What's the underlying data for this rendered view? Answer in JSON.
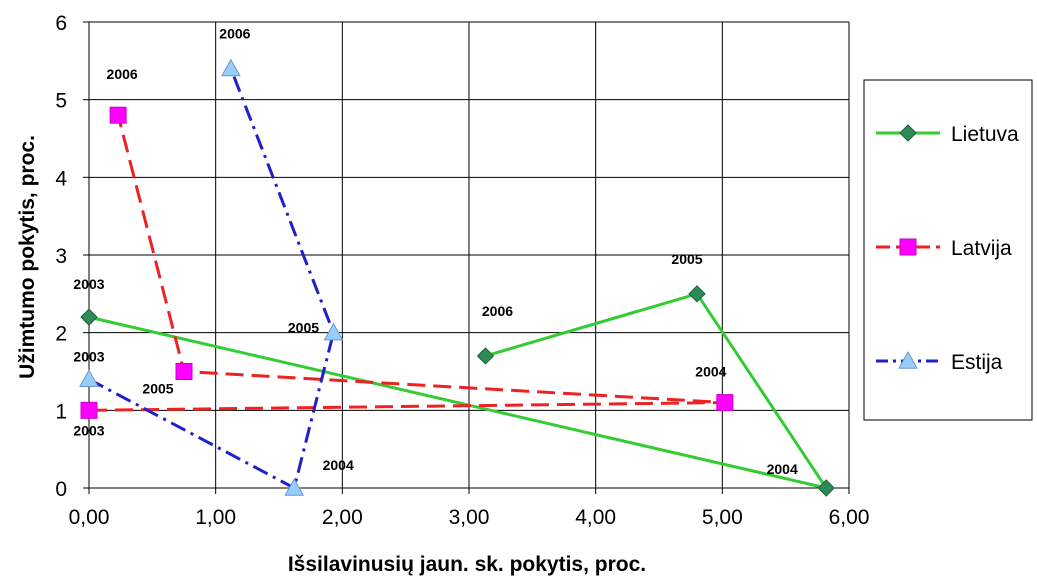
{
  "chart_data": {
    "type": "scatter",
    "title": "",
    "xlabel": "Išsilavinusių jaun. sk. pokytis, proc.",
    "ylabel": "Užimtumo pokytis, proc.",
    "xlim": [
      0,
      6
    ],
    "ylim": [
      0,
      6
    ],
    "x_ticks": [
      "0,00",
      "1,00",
      "2,00",
      "3,00",
      "4,00",
      "5,00",
      "6,00"
    ],
    "y_ticks": [
      "0",
      "1",
      "2",
      "3",
      "4",
      "5",
      "6"
    ],
    "grid": true,
    "legend_position": "right",
    "series": [
      {
        "name": "Lietuva",
        "color": "#33CC33",
        "marker_color": "#2E8B57",
        "marker": "diamond",
        "line_style": "solid",
        "points": [
          {
            "year": "2003",
            "x": 0.0,
            "y": 2.2
          },
          {
            "year": "2004",
            "x": 5.82,
            "y": 0.0
          },
          {
            "year": "2005",
            "x": 4.8,
            "y": 2.5
          },
          {
            "year": "2006",
            "x": 3.13,
            "y": 1.7
          }
        ]
      },
      {
        "name": "Latvija",
        "color": "#EE2222",
        "marker_color": "#FF00FF",
        "marker": "square",
        "line_style": "dashed",
        "points": [
          {
            "year": "2003",
            "x": 0.0,
            "y": 1.0
          },
          {
            "year": "2004",
            "x": 5.02,
            "y": 1.1
          },
          {
            "year": "2005",
            "x": 0.75,
            "y": 1.5
          },
          {
            "year": "2006",
            "x": 0.23,
            "y": 4.8
          }
        ]
      },
      {
        "name": "Estija",
        "color": "#1F1FCC",
        "marker_color": "#99CCFF",
        "marker": "triangle",
        "line_style": "dashdot",
        "points": [
          {
            "year": "2003",
            "x": 0.0,
            "y": 1.4
          },
          {
            "year": "2004",
            "x": 1.62,
            "y": 0.0
          },
          {
            "year": "2005",
            "x": 1.93,
            "y": 2.0
          },
          {
            "year": "2006",
            "x": 1.12,
            "y": 5.4
          }
        ]
      }
    ]
  }
}
